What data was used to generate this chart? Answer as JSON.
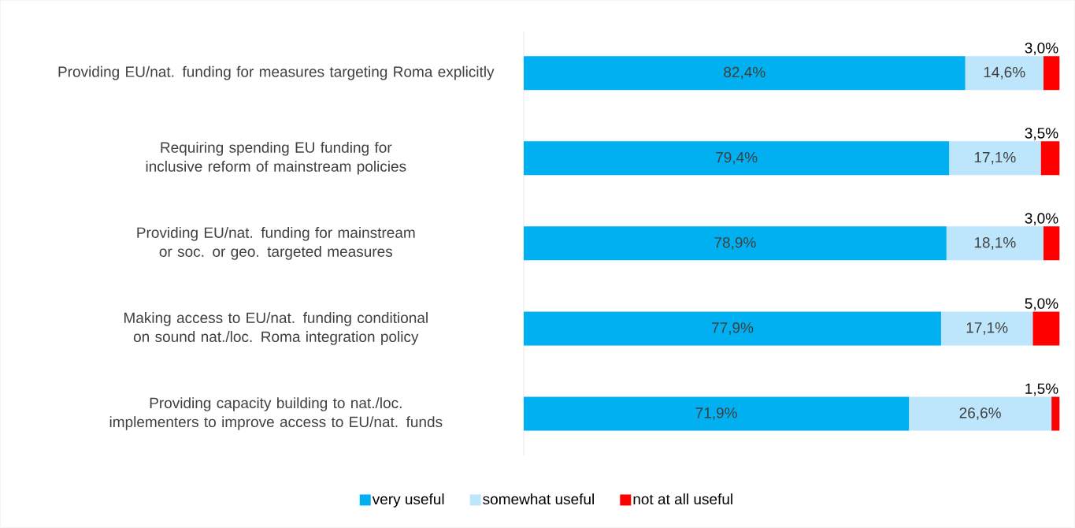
{
  "chart_data": {
    "type": "bar",
    "orientation": "horizontal",
    "stacked": true,
    "legend": "bottom",
    "categories": [
      "Providing EU/nat. funding for measures targeting Roma explicitly",
      "Requiring spending EU funding for inclusive reform of mainstream policies",
      "Providing EU/nat. funding for mainstream or soc. or geo. targeted measures",
      "Making access to EU/nat. funding conditional on sound nat./loc. Roma integration policy",
      "Providing capacity building to nat./loc. implementers to improve access to EU/nat. funds"
    ],
    "series": [
      {
        "name": "very useful",
        "color": "#00b0f0",
        "values": [
          82.4,
          79.4,
          78.9,
          77.9,
          71.9
        ],
        "value_labels": [
          "82,4%",
          "79,4%",
          "78,9%",
          "77,9%",
          "71,9%"
        ]
      },
      {
        "name": "somewhat useful",
        "color": "#bde5fb",
        "values": [
          14.6,
          17.1,
          18.1,
          17.1,
          26.6
        ],
        "value_labels": [
          "14,6%",
          "17,1%",
          "18,1%",
          "17,1%",
          "26,6%"
        ]
      },
      {
        "name": "not at all useful",
        "color": "#ff0000",
        "values": [
          3.0,
          3.5,
          3.0,
          5.0,
          1.5
        ],
        "value_labels": [
          "3,0%",
          "3,5%",
          "3,0%",
          "5,0%",
          "1,5%"
        ]
      }
    ]
  }
}
